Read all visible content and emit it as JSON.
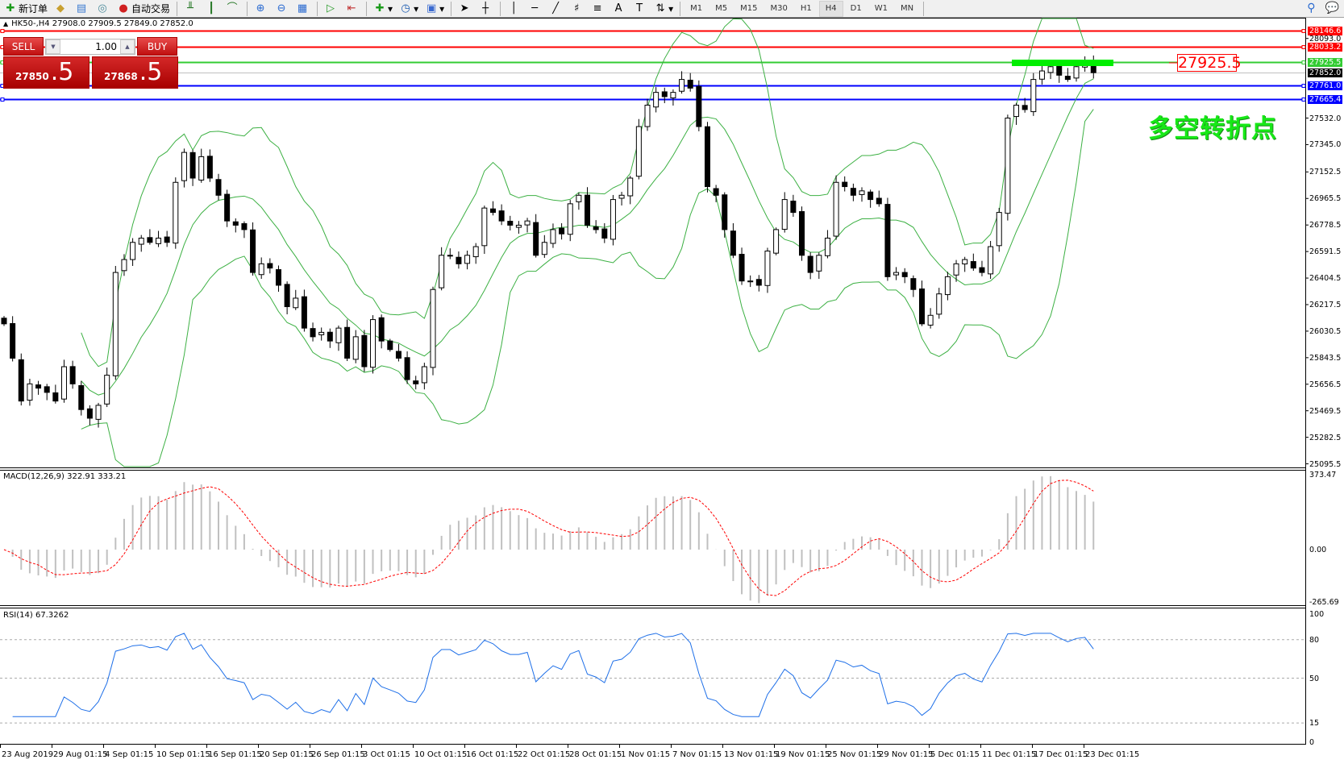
{
  "toolbar": {
    "items": [
      {
        "icon": "new-order-icon",
        "label": "新订单"
      },
      {
        "icon": "folder-icon",
        "label": ""
      },
      {
        "icon": "market-watch-icon",
        "label": ""
      },
      {
        "icon": "signal-icon",
        "label": ""
      },
      {
        "icon": "auto-trading-icon",
        "label": "自动交易"
      }
    ],
    "chart_tools": [
      "bar-chart-icon",
      "candlestick-icon",
      "line-chart-icon",
      "zoom-in-icon",
      "zoom-out-icon",
      "tile-windows-icon",
      "autoscroll-icon",
      "chart-shift-icon",
      "indicators-icon",
      "periods-icon",
      "templates-icon",
      "cursor-icon",
      "crosshair-icon",
      "vertical-line-icon",
      "horizontal-line-icon",
      "trendline-icon",
      "fibo-icon",
      "fibo-channel-icon",
      "text-icon",
      "text-label-icon",
      "arrows-icon"
    ],
    "timeframes": [
      "M1",
      "M5",
      "M15",
      "M30",
      "H1",
      "H4",
      "D1",
      "W1",
      "MN"
    ],
    "active_timeframe": "H4"
  },
  "info_line": "HK50-,H4  27908.0 27909.5 27849.0 27852.0",
  "trade_panel": {
    "sell_label": "SELL",
    "buy_label": "BUY",
    "lot": "1.00",
    "sell_price_main": "27850",
    "sell_price_frac": ".5",
    "buy_price_main": "27868",
    "buy_price_frac": ".5"
  },
  "price_axis": [
    "28093.0",
    "27532.0",
    "27345.0",
    "27152.5",
    "26965.5",
    "26778.5",
    "26591.5",
    "26404.5",
    "26217.5",
    "26030.5",
    "25843.5",
    "25656.5",
    "25469.5",
    "25282.5",
    "25095.5"
  ],
  "price_axis_values": [
    28093.0,
    27532.0,
    27345.0,
    27152.5,
    26965.5,
    26778.5,
    26591.5,
    26404.5,
    26217.5,
    26030.5,
    25843.5,
    25656.5,
    25469.5,
    25282.5,
    25095.5
  ],
  "hlines": [
    {
      "label": "28146.6",
      "price": 28146.6,
      "color": "#ff0000"
    },
    {
      "label": "28033.2",
      "price": 28033.2,
      "color": "#ff0000"
    },
    {
      "label": "27925.5",
      "price": 27925.5,
      "color": "#33cc33"
    },
    {
      "label": "27852.0",
      "price": 27852.0,
      "color": "#000000"
    },
    {
      "label": "27761.0",
      "price": 27761.0,
      "color": "#0000ff"
    },
    {
      "label": "27665.4",
      "price": 27665.4,
      "color": "#0000ff"
    }
  ],
  "price_label_box": "27925.5",
  "annotation": "多空转折点",
  "chart": {
    "closes": [
      26082,
      25840,
      25538,
      25659,
      25629,
      25599,
      25538,
      25780,
      25659,
      25478,
      25417,
      25508,
      25720,
      26444,
      26535,
      26656,
      26686,
      26656,
      26686,
      26656,
      27079,
      27290,
      27109,
      27260,
      27109,
      26988,
      26807,
      26777,
      26746,
      26444,
      26505,
      26475,
      26354,
      26203,
      26263,
      26052,
      25991,
      26022,
      25961,
      26052,
      25840,
      25991,
      25780,
      26112,
      25961,
      25901,
      25840,
      25689,
      25659,
      25780,
      26324,
      26565,
      26565,
      26505,
      26565,
      26626,
      26898,
      26867,
      26807,
      26777,
      26777,
      26807,
      26565,
      26656,
      26746,
      26716,
      26928,
      26988,
      26777,
      26746,
      26686,
      26958,
      26988,
      27109,
      27472,
      27623,
      27713,
      27683,
      27713,
      27804,
      27743,
      27472,
      27049,
      26988,
      26746,
      26565,
      26384,
      26384,
      26354,
      26595,
      26746,
      26958,
      26867,
      26565,
      26444,
      26565,
      26686,
      27079,
      27049,
      26988,
      27019,
      26958,
      26928,
      26414,
      26444,
      26414,
      26324,
      26082,
      26142,
      26293,
      26414,
      26505,
      26535,
      26475,
      26444,
      26626,
      26867,
      27532,
      27623,
      27592,
      27804,
      27864,
      27894,
      27834,
      27804,
      27894,
      27925,
      27852
    ],
    "bull_color": "#ffffff",
    "bear_color": "#000000",
    "band_color": "#3cb043"
  },
  "macd": {
    "label": "MACD(12,26,9) 322.91 333.21",
    "max": "373.47",
    "zero": "0.00",
    "min": "-265.69",
    "max_value": 373.47,
    "min_value": -265.69,
    "hist_color": "#c0c0c0",
    "signal_color": "#ff0000"
  },
  "rsi": {
    "label": "RSI(14) 67.3262",
    "levels": [
      "100",
      "80",
      "50",
      "15",
      "0"
    ],
    "level_values": [
      100,
      80,
      50,
      15,
      0
    ],
    "line_color": "#1e6fe8"
  },
  "time_axis": [
    "23 Aug 2019",
    "29 Aug 01:15",
    "4 Sep 01:15",
    "10 Sep 01:15",
    "16 Sep 01:15",
    "20 Sep 01:15",
    "26 Sep 01:15",
    "3 Oct 01:15",
    "10 Oct 01:15",
    "16 Oct 01:15",
    "22 Oct 01:15",
    "28 Oct 01:15",
    "1 Nov 01:15",
    "7 Nov 01:15",
    "13 Nov 01:15",
    "19 Nov 01:15",
    "25 Nov 01:15",
    "29 Nov 01:15",
    "5 Dec 01:15",
    "11 Dec 01:15",
    "17 Dec 01:15",
    "23 Dec 01:15"
  ]
}
